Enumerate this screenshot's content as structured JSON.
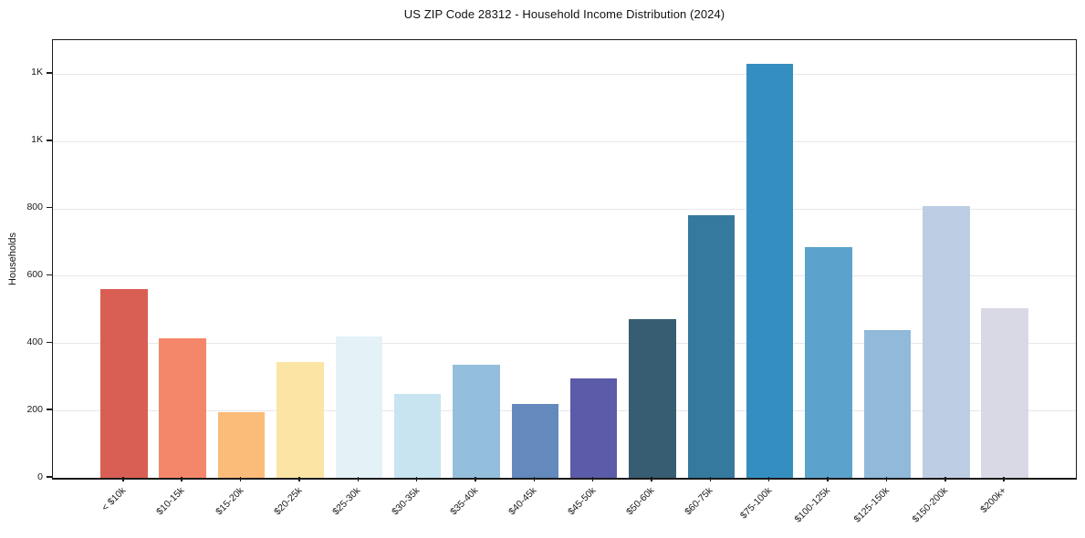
{
  "chart_data": {
    "type": "bar",
    "title": "US ZIP Code 28312 - Household Income Distribution (2024)",
    "xlabel": "",
    "ylabel": "Households",
    "categories": [
      "< $10k",
      "$10-15k",
      "$15-20k",
      "$20-25k",
      "$25-30k",
      "$30-35k",
      "$35-40k",
      "$40-45k",
      "$45-50k",
      "$50-60k",
      "$60-75k",
      "$75-100k",
      "$100-125k",
      "$125-150k",
      "$150-200k",
      "$200k+"
    ],
    "values": [
      560,
      415,
      195,
      345,
      420,
      250,
      335,
      220,
      295,
      470,
      780,
      1230,
      685,
      440,
      808,
      505
    ],
    "bar_colors": [
      "#d95f55",
      "#f4876a",
      "#fbbc79",
      "#fce4a4",
      "#e4f2f7",
      "#c8e4f0",
      "#93bfdd",
      "#6389bd",
      "#5b5baa",
      "#375d72",
      "#35799e",
      "#348fc0",
      "#5ba3cc",
      "#91b9da",
      "#bccde4",
      "#d9d9e6"
    ],
    "ylim": [
      0,
      1300
    ],
    "yticks": [
      {
        "value": 0,
        "label": "0"
      },
      {
        "value": 200,
        "label": "200"
      },
      {
        "value": 400,
        "label": "400"
      },
      {
        "value": 600,
        "label": "600"
      },
      {
        "value": 800,
        "label": "800"
      },
      {
        "value": 1000,
        "label": "1K"
      },
      {
        "value": 1200,
        "label": "1K"
      }
    ],
    "grid": "horizontal",
    "legend": "none",
    "background_color": "#ffffff",
    "frame_color": "#1a1a1a",
    "gridline_color": "#e7e7ec"
  }
}
